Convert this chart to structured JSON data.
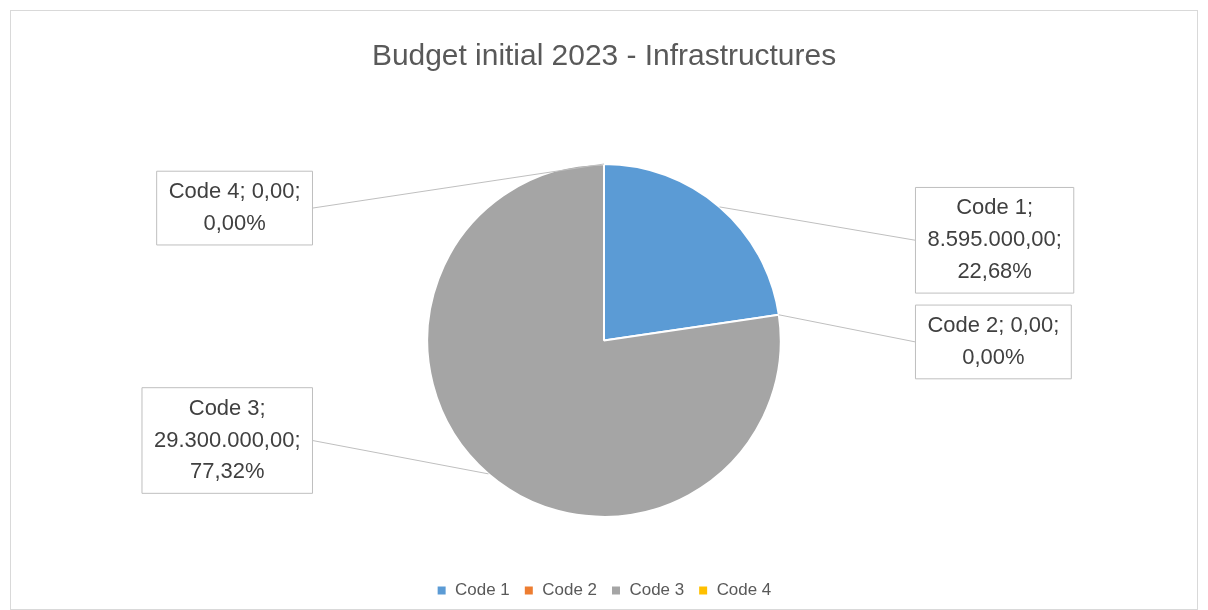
{
  "chart_data": {
    "type": "pie",
    "title": "Budget initial 2023 - Infrastructures",
    "categories": [
      "Code 1",
      "Code 2",
      "Code 3",
      "Code 4"
    ],
    "values": [
      8595000,
      0,
      29300000,
      0
    ],
    "colors": [
      "#5b9bd5",
      "#ed7d31",
      "#a5a5a5",
      "#ffc000"
    ],
    "value_labels": [
      "Code 1; 8.595.000,00; 22,68%",
      "Code 2; 0,00; 0,00%",
      "Code 3; 29.300.000,00; 77,32%",
      "Code 4; 0,00; 0,00%"
    ],
    "legend": "bottom"
  }
}
